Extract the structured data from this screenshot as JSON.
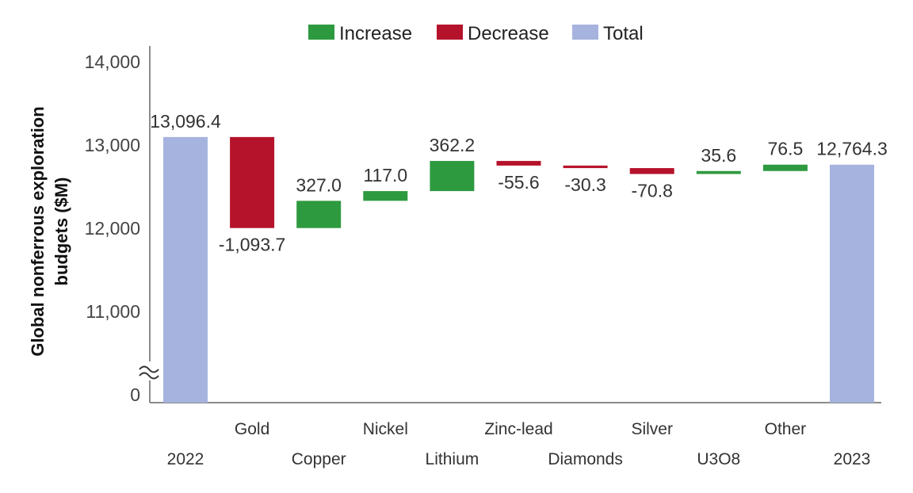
{
  "chart_data": {
    "type": "waterfall",
    "ylabel_lines": [
      "Global nonferrous exploration",
      "budgets ($M)"
    ],
    "yticks": [
      {
        "value": 0,
        "label": "0"
      },
      {
        "value": 11000,
        "label": "11,000"
      },
      {
        "value": 12000,
        "label": "12,000"
      },
      {
        "value": 13000,
        "label": "13,000"
      },
      {
        "value": 14000,
        "label": "14,000"
      }
    ],
    "axis_break": {
      "from": 0,
      "to": 10000
    },
    "ylim": [
      10000,
      14000
    ],
    "legend": [
      {
        "name": "Increase",
        "color": "#2e9a3f"
      },
      {
        "name": "Decrease",
        "color": "#b5132b"
      },
      {
        "name": "Total",
        "color": "#a6b3df"
      }
    ],
    "colors": {
      "increase": "#2e9a3f",
      "decrease": "#b5132b",
      "total": "#a6b3df",
      "axis": "#666666"
    },
    "items": [
      {
        "category": "2022",
        "kind": "total",
        "value": 13096.4,
        "label": "13,096.4",
        "label_row": 2
      },
      {
        "category": "Gold",
        "kind": "decrease",
        "value": -1093.7,
        "label": "-1,093.7",
        "label_row": 1
      },
      {
        "category": "Copper",
        "kind": "increase",
        "value": 327.0,
        "label": "327.0",
        "label_row": 2
      },
      {
        "category": "Nickel",
        "kind": "increase",
        "value": 117.0,
        "label": "117.0",
        "label_row": 1
      },
      {
        "category": "Lithium",
        "kind": "increase",
        "value": 362.2,
        "label": "362.2",
        "label_row": 2
      },
      {
        "category": "Zinc-lead",
        "kind": "decrease",
        "value": -55.6,
        "label": "-55.6",
        "label_row": 1
      },
      {
        "category": "Diamonds",
        "kind": "decrease",
        "value": -30.3,
        "label": "-30.3",
        "label_row": 2
      },
      {
        "category": "Silver",
        "kind": "decrease",
        "value": -70.8,
        "label": "-70.8",
        "label_row": 1
      },
      {
        "category": "U3O8",
        "kind": "increase",
        "value": 35.6,
        "label": "35.6",
        "label_row": 2
      },
      {
        "category": "Other",
        "kind": "increase",
        "value": 76.5,
        "label": "76.5",
        "label_row": 1
      },
      {
        "category": "2023",
        "kind": "total",
        "value": 12764.3,
        "label": "12,764.3",
        "label_row": 2
      }
    ]
  }
}
